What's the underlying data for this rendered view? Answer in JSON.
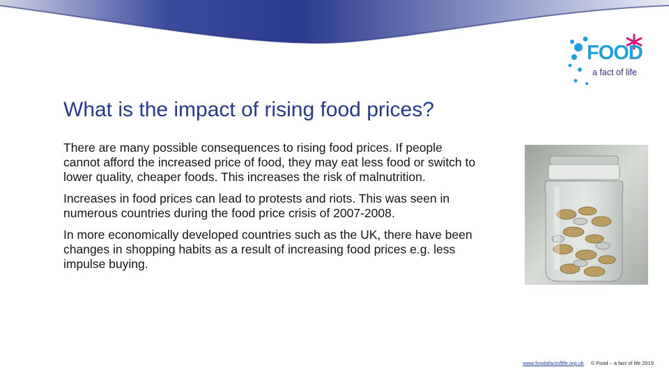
{
  "slide": {
    "title": "What is the impact of rising food prices?",
    "paragraphs": [
      "There are many possible consequences to rising food prices. If people cannot afford the increased price of food, they may eat less food or switch to lower quality, cheaper foods. This increases the risk of malnutrition.",
      "Increases in food prices can lead to protests and riots. This was seen in numerous countries during the food price crisis of 2007-2008.",
      "In more economically developed countries such as the UK, there have been changes in shopping habits as a result of increasing food prices e.g. less impulse buying."
    ]
  },
  "logo": {
    "word": "FOOD",
    "tagline": "a fact of life"
  },
  "image": {
    "icon": "coin-jar-photo"
  },
  "footer": {
    "link": "www.foodafactoflife.org.uk",
    "copyright": "© Food – a fact of life 2019"
  },
  "colors": {
    "title": "#263a86",
    "swoosh": "#2b3a8c",
    "logo_blue": "#1fa0d8",
    "logo_magenta": "#d6197f"
  }
}
